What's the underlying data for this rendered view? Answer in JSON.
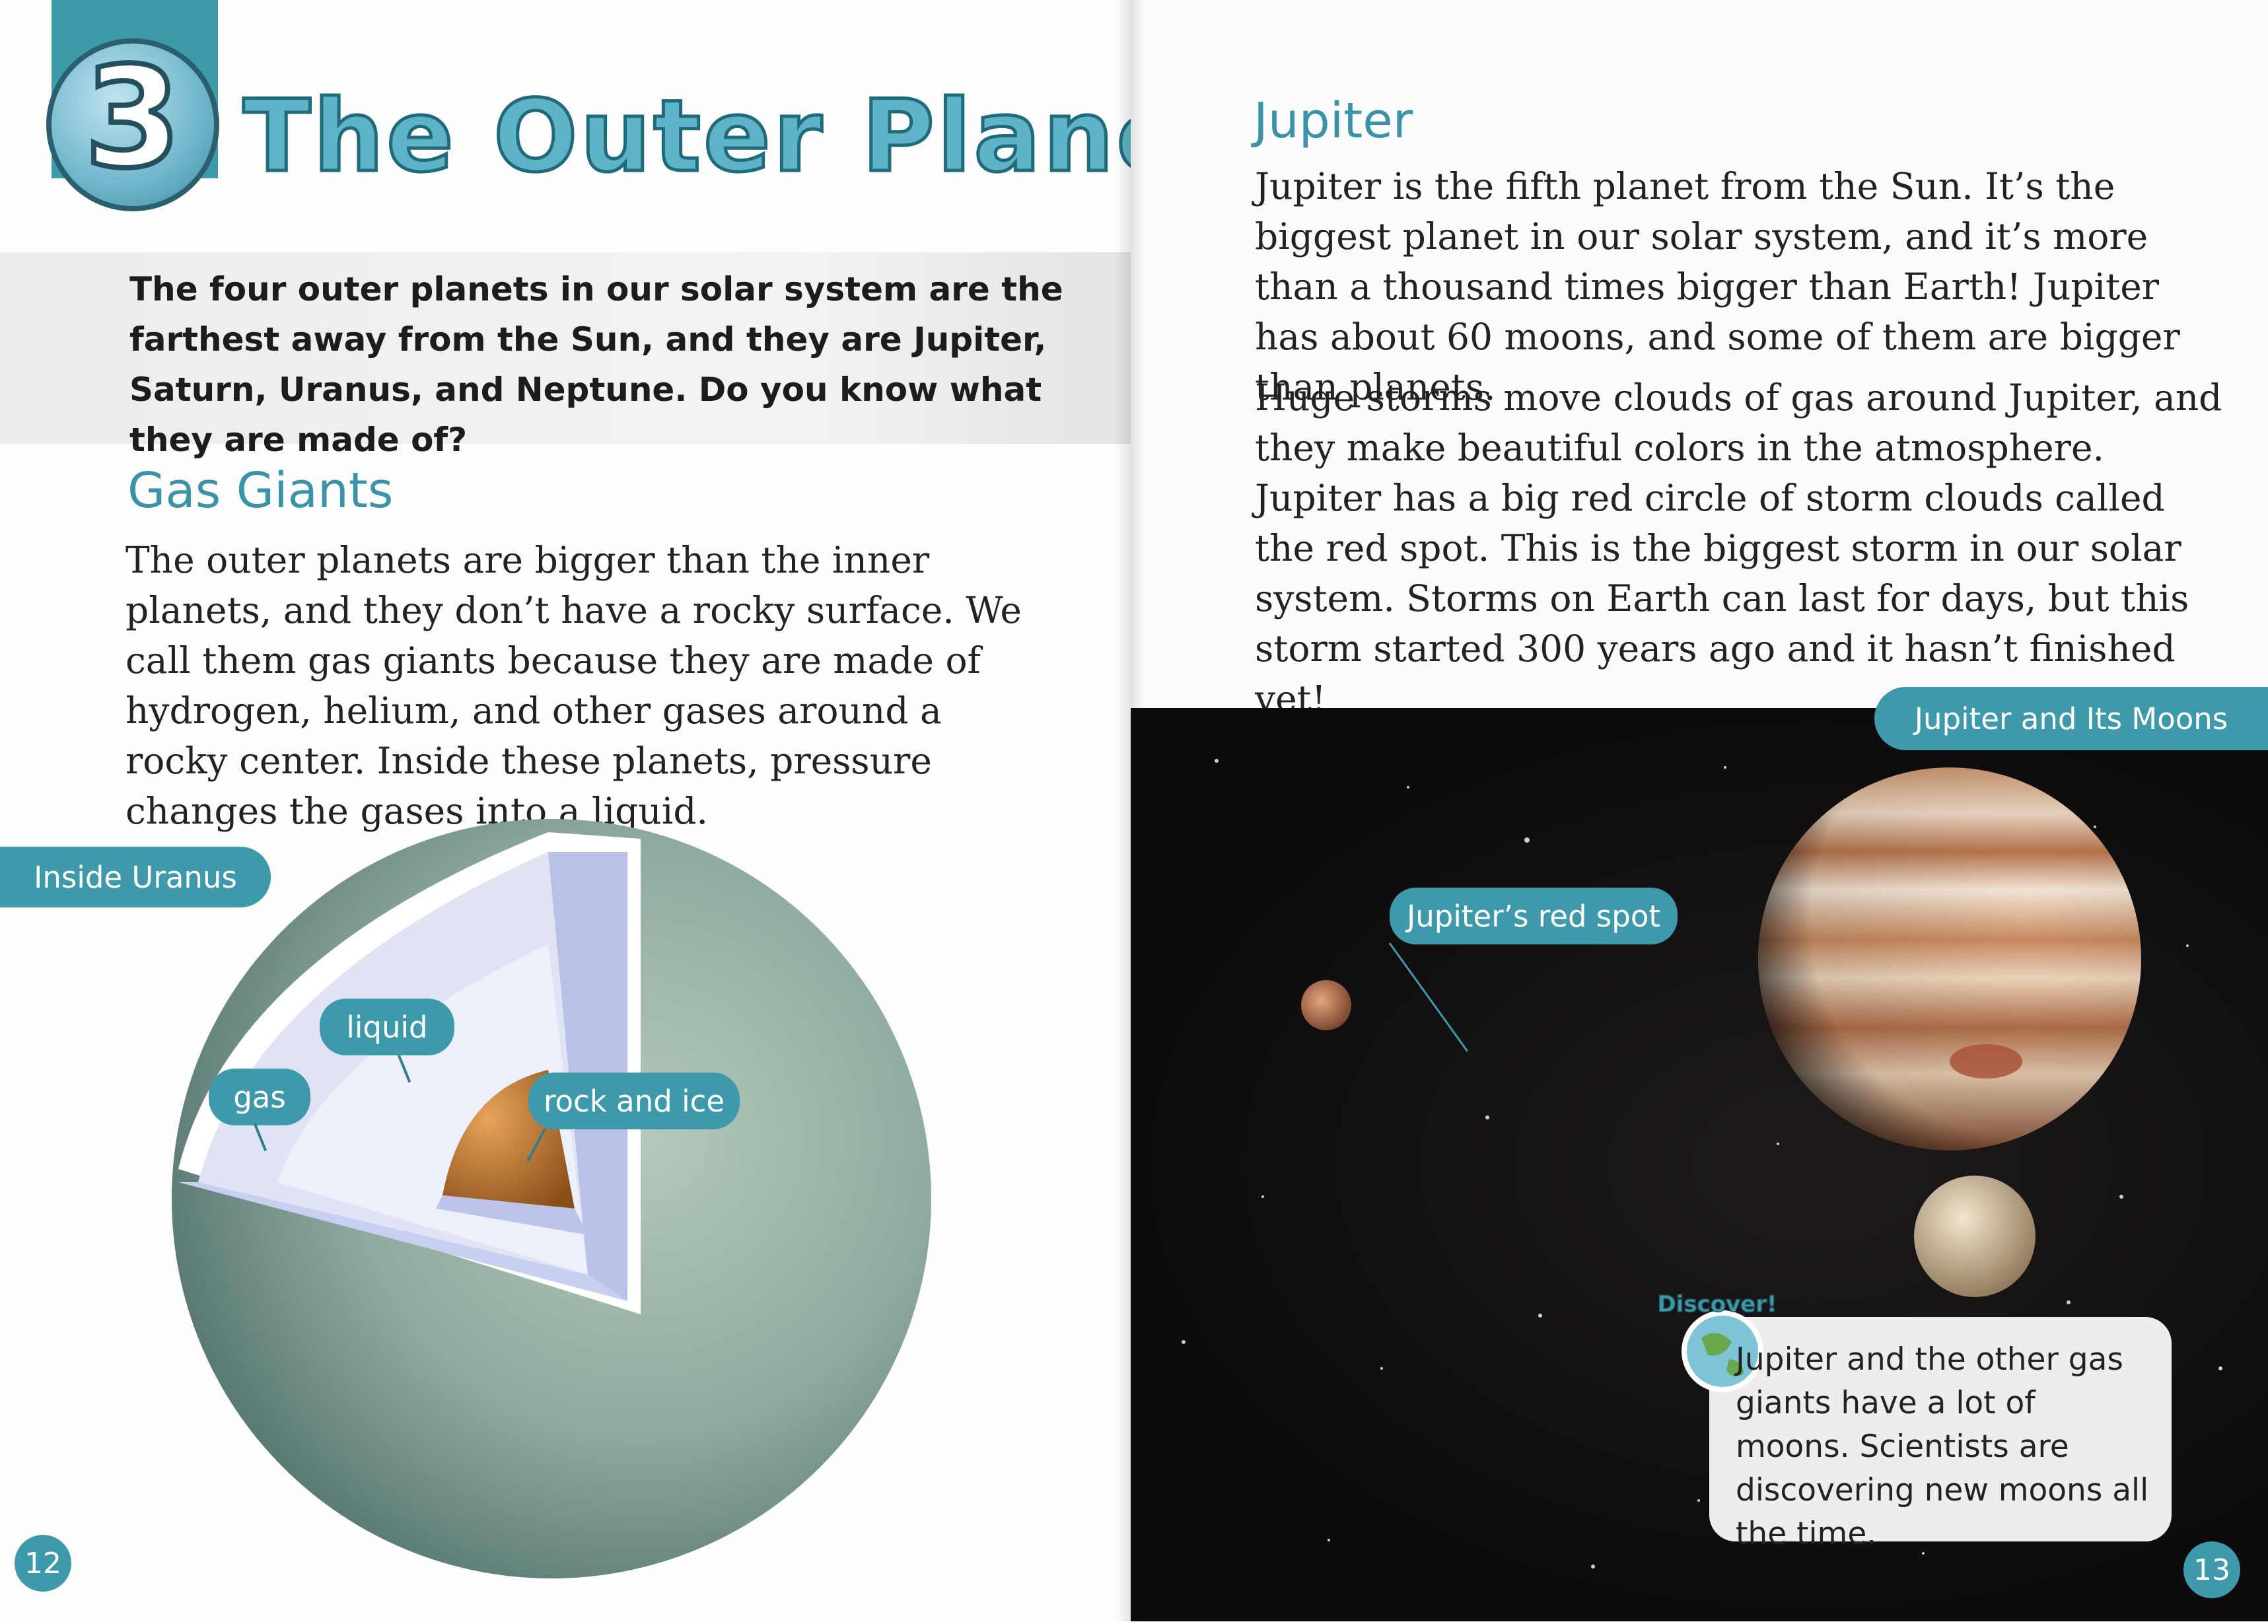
{
  "left_page": {
    "chapter_number": "3",
    "chapter_title": "The Outer Planets",
    "intro": "The four outer planets in our solar system are the farthest away from the Sun, and they are Jupiter, Saturn, Uranus, and Neptune. Do you know what they are made of?",
    "section_heading": "Gas Giants",
    "section_body": "The outer planets are bigger than the inner planets, and they don’t have a rocky surface. We call them gas giants because they are made of hydrogen, helium, and other gases around a rocky center. Inside these planets, pressure changes the gases into a liquid.",
    "figure_tab": "Inside Uranus",
    "labels": {
      "liquid": "liquid",
      "gas": "gas",
      "core": "rock and ice"
    },
    "page_number": "12"
  },
  "right_page": {
    "heading": "Jupiter",
    "paragraph1": "Jupiter is the fifth planet from the Sun. It’s the biggest planet in our solar system, and it’s more than a thousand times bigger than Earth! Jupiter has about 60 moons, and some of them are bigger than planets.",
    "paragraph2": "Huge storms move clouds of gas around Jupiter, and they make beautiful colors in the atmosphere. Jupiter has a big red circle of storm clouds called the red spot. This is the biggest storm in our solar system. Storms on Earth can last for days, but this storm started 300 years ago and it hasn’t finished yet!",
    "figure_tab": "Jupiter and Its Moons",
    "red_spot_label": "Jupiter’s red spot",
    "discover_badge": "Discover!",
    "discover_text": "Jupiter and the other gas giants have a lot of moons. Scientists are discovering new moons all the time.",
    "page_number": "13"
  },
  "colors": {
    "accent": "#3e9aab",
    "heading": "#3a93a8",
    "space": "#0d0b0c"
  }
}
